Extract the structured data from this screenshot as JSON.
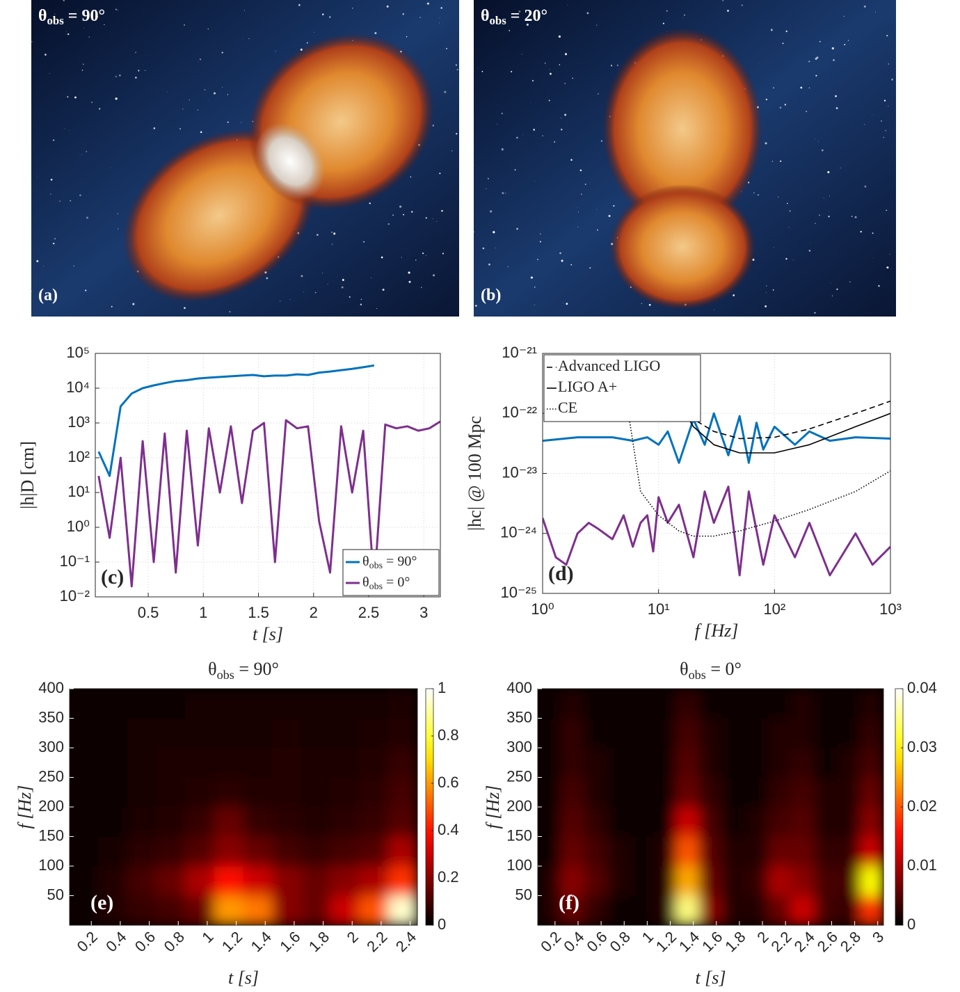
{
  "images": [
    {
      "title": "θobs = 90°",
      "label": "(a)"
    },
    {
      "title": "θobs = 20°",
      "label": "(b)"
    }
  ],
  "chart_data": [
    {
      "type": "line",
      "panel_label": "(c)",
      "xlabel": "t [s]",
      "ylabel": "|h|D [cm]",
      "yscale": "log",
      "grid": true,
      "legend": "lower right",
      "xlim": [
        0.02,
        3.15
      ],
      "xticks": [
        0.5,
        1,
        1.5,
        2,
        2.5,
        3
      ],
      "ylim": [
        0.01,
        100000
      ],
      "yticks": [
        {
          "value": 0.01,
          "label": "10⁻²"
        },
        {
          "value": 0.1,
          "label": "10⁻¹"
        },
        {
          "value": 1,
          "label": "10⁰"
        },
        {
          "value": 10,
          "label": "10¹"
        },
        {
          "value": 100,
          "label": "10²"
        },
        {
          "value": 1000,
          "label": "10³"
        },
        {
          "value": 10000,
          "label": "10⁴"
        },
        {
          "value": 100000,
          "label": "10⁵"
        }
      ],
      "x": [
        0.05,
        0.15,
        0.25,
        0.35,
        0.45,
        0.55,
        0.65,
        0.75,
        0.85,
        0.95,
        1.05,
        1.15,
        1.25,
        1.35,
        1.45,
        1.55,
        1.65,
        1.75,
        1.85,
        1.95,
        2.05,
        2.15,
        2.25,
        2.35,
        2.45,
        2.55,
        2.65,
        2.75,
        2.85,
        2.95,
        3.05,
        3.15
      ],
      "series": [
        {
          "name": "θobs = 90°",
          "color": "#0072bd",
          "values": [
            150,
            30,
            3000,
            7000,
            10000,
            12000,
            14000,
            16000,
            17000,
            19000,
            20000,
            21000,
            22000,
            23000,
            24000,
            22000,
            23000,
            23000,
            25000,
            24000,
            28000,
            30000,
            33000,
            36000,
            40000,
            45000,
            null,
            null,
            null,
            null,
            null,
            null
          ]
        },
        {
          "name": "θobs = 0°",
          "color": "#7e2f8e",
          "values": [
            30,
            0.5,
            100,
            0.02,
            300,
            0.1,
            500,
            0.05,
            600,
            0.3,
            700,
            10,
            800,
            5,
            600,
            1000,
            0.1,
            1200,
            700,
            800,
            1.5,
            0.05,
            800,
            10,
            600,
            0.02,
            900,
            700,
            800,
            600,
            700,
            1100
          ]
        }
      ]
    },
    {
      "type": "line",
      "panel_label": "(d)",
      "xlabel": "f [Hz]",
      "ylabel": "|hc| @ 100 Mpc",
      "xscale": "log",
      "yscale": "log",
      "grid": true,
      "legend": "upper left",
      "xlim": [
        1,
        1000
      ],
      "xticks": [
        {
          "value": 1,
          "label": "10⁰"
        },
        {
          "value": 10,
          "label": "10¹"
        },
        {
          "value": 100,
          "label": "10²"
        },
        {
          "value": 1000,
          "label": "10³"
        }
      ],
      "ylim": [
        1e-25,
        1e-21
      ],
      "yticks": [
        {
          "value": 1e-25,
          "label": "10⁻²⁵"
        },
        {
          "value": 1e-24,
          "label": "10⁻²⁴"
        },
        {
          "value": 1e-23,
          "label": "10⁻²³"
        },
        {
          "value": 1e-22,
          "label": "10⁻²²"
        },
        {
          "value": 1e-21,
          "label": "10⁻²¹"
        }
      ],
      "series": [
        {
          "color": "#0072bd",
          "x": [
            1,
            2,
            4,
            6,
            8,
            10,
            12,
            15,
            20,
            25,
            30,
            40,
            50,
            60,
            70,
            80,
            100,
            150,
            200,
            300,
            500,
            1000
          ],
          "values": [
            3.5e-23,
            4e-23,
            4e-23,
            3.5e-23,
            4e-23,
            3e-23,
            5e-23,
            1.5e-23,
            8e-23,
            3e-23,
            1e-22,
            2e-23,
            9e-23,
            1.5e-23,
            7e-23,
            2.5e-23,
            6e-23,
            3e-23,
            5e-23,
            3.5e-23,
            4e-23,
            3.8e-23
          ]
        },
        {
          "color": "#7e2f8e",
          "x": [
            1,
            1.3,
            1.6,
            2,
            2.5,
            3,
            4,
            5,
            6,
            7,
            8,
            9,
            10,
            12,
            15,
            20,
            25,
            30,
            40,
            50,
            60,
            80,
            100,
            150,
            200,
            300,
            500,
            700,
            1000
          ],
          "values": [
            1.8e-24,
            4e-25,
            3e-25,
            1e-24,
            1.5e-24,
            1.2e-24,
            8e-25,
            2e-24,
            6e-25,
            1.5e-24,
            2e-24,
            5e-25,
            4e-24,
            1.5e-24,
            3e-24,
            4e-25,
            5e-24,
            1.5e-24,
            6e-24,
            2e-25,
            5e-24,
            3e-25,
            2e-24,
            4e-25,
            1.5e-24,
            2e-25,
            1e-24,
            3e-25,
            6e-25
          ]
        },
        {
          "name": "Advanced LIGO",
          "color": "#000000",
          "dash": "dashed",
          "x": [
            10,
            15,
            20,
            30,
            50,
            100,
            200,
            500,
            1000
          ],
          "values": [
            5e-22,
            1.5e-22,
            8e-23,
            5e-23,
            3.8e-23,
            4e-23,
            5.5e-23,
            1e-22,
            1.6e-22
          ]
        },
        {
          "name": "LIGO A+",
          "color": "#000000",
          "dash": "solid",
          "x": [
            15,
            20,
            30,
            50,
            100,
            200,
            500,
            1000
          ],
          "values": [
            1.5e-22,
            6e-23,
            3e-23,
            2.2e-23,
            2.2e-23,
            3e-23,
            6e-23,
            1e-22
          ]
        },
        {
          "name": "CE",
          "color": "#000000",
          "dash": "dotted",
          "x": [
            5.5,
            7,
            10,
            15,
            20,
            30,
            50,
            100,
            200,
            500,
            1000
          ],
          "values": [
            1e-22,
            5e-24,
            2e-24,
            1.1e-24,
            9e-25,
            9e-25,
            1.1e-24,
            1.6e-24,
            2.5e-24,
            5e-24,
            1.1e-23
          ]
        }
      ]
    },
    {
      "type": "heatmap",
      "title": "θobs = 90°",
      "panel_label": "(e)",
      "xlabel": "t [s]",
      "ylabel": "f [Hz]",
      "colormap": "hot",
      "xlim": [
        0.05,
        2.45
      ],
      "xticks": [
        0.2,
        0.4,
        0.6,
        0.8,
        1,
        1.2,
        1.4,
        1.6,
        1.8,
        2,
        2.2,
        2.4
      ],
      "ylim": [
        0,
        400
      ],
      "yticks": [
        50,
        100,
        150,
        200,
        250,
        300,
        350,
        400
      ],
      "zlim": [
        0,
        1
      ],
      "zticks": [
        0,
        0.2,
        0.4,
        0.6,
        0.8,
        1
      ],
      "x": [
        0.15,
        0.35,
        0.55,
        0.75,
        0.95,
        1.15,
        1.35,
        1.55,
        1.75,
        1.95,
        2.15,
        2.35
      ],
      "y": [
        25,
        75,
        125,
        175,
        225,
        275,
        325,
        375
      ],
      "z": [
        [
          0.02,
          0.05,
          0.08,
          0.1,
          0.15,
          0.6,
          0.55,
          0.2,
          0.15,
          0.3,
          0.5,
          0.95
        ],
        [
          0.02,
          0.05,
          0.1,
          0.15,
          0.25,
          0.4,
          0.3,
          0.2,
          0.15,
          0.2,
          0.25,
          0.45
        ],
        [
          0.01,
          0.03,
          0.06,
          0.08,
          0.12,
          0.2,
          0.15,
          0.1,
          0.08,
          0.1,
          0.12,
          0.25
        ],
        [
          0.01,
          0.02,
          0.04,
          0.05,
          0.08,
          0.15,
          0.08,
          0.06,
          0.05,
          0.06,
          0.08,
          0.12
        ],
        [
          0.01,
          0.02,
          0.03,
          0.04,
          0.05,
          0.06,
          0.05,
          0.05,
          0.04,
          0.05,
          0.06,
          0.1
        ],
        [
          0.01,
          0.02,
          0.03,
          0.04,
          0.04,
          0.04,
          0.04,
          0.05,
          0.04,
          0.04,
          0.05,
          0.08
        ],
        [
          0.01,
          0.02,
          0.03,
          0.03,
          0.03,
          0.03,
          0.03,
          0.04,
          0.03,
          0.03,
          0.04,
          0.05
        ],
        [
          0.01,
          0.02,
          0.02,
          0.02,
          0.03,
          0.03,
          0.03,
          0.03,
          0.03,
          0.03,
          0.03,
          0.04
        ]
      ]
    },
    {
      "type": "heatmap",
      "title": "θobs = 0°",
      "panel_label": "(f)",
      "xlabel": "t [s]",
      "ylabel": "f [Hz]",
      "colormap": "hot",
      "xlim": [
        0.05,
        3.05
      ],
      "xticks": [
        0.2,
        0.4,
        0.6,
        0.8,
        1,
        1.2,
        1.4,
        1.6,
        1.8,
        2,
        2.2,
        2.4,
        2.6,
        2.8,
        3
      ],
      "ylim": [
        0,
        400
      ],
      "yticks": [
        50,
        100,
        150,
        200,
        250,
        300,
        350,
        400
      ],
      "zlim": [
        0,
        0.04
      ],
      "zticks": [
        0,
        0.01,
        0.02,
        0.03,
        0.04
      ],
      "x": [
        0.15,
        0.35,
        0.55,
        0.75,
        0.95,
        1.15,
        1.35,
        1.55,
        1.75,
        1.95,
        2.15,
        2.35,
        2.55,
        2.75,
        2.95
      ],
      "y": [
        25,
        75,
        125,
        175,
        225,
        275,
        325,
        375
      ],
      "z": [
        [
          0.002,
          0.006,
          0.003,
          0.001,
          0.001,
          0.002,
          0.035,
          0.008,
          0.002,
          0.002,
          0.006,
          0.012,
          0.004,
          0.003,
          0.018
        ],
        [
          0.002,
          0.008,
          0.005,
          0.002,
          0.001,
          0.002,
          0.025,
          0.006,
          0.002,
          0.003,
          0.01,
          0.008,
          0.004,
          0.004,
          0.03
        ],
        [
          0.001,
          0.006,
          0.004,
          0.002,
          0.001,
          0.002,
          0.02,
          0.005,
          0.002,
          0.002,
          0.006,
          0.006,
          0.003,
          0.003,
          0.012
        ],
        [
          0.001,
          0.005,
          0.003,
          0.001,
          0.001,
          0.001,
          0.012,
          0.004,
          0.001,
          0.002,
          0.004,
          0.005,
          0.002,
          0.002,
          0.008
        ],
        [
          0.001,
          0.004,
          0.002,
          0.001,
          0.001,
          0.001,
          0.006,
          0.003,
          0.001,
          0.001,
          0.003,
          0.004,
          0.002,
          0.002,
          0.006
        ],
        [
          0.001,
          0.003,
          0.002,
          0.001,
          0.001,
          0.001,
          0.005,
          0.002,
          0.001,
          0.001,
          0.002,
          0.003,
          0.001,
          0.002,
          0.004
        ],
        [
          0.001,
          0.003,
          0.001,
          0.001,
          0.001,
          0.001,
          0.004,
          0.002,
          0.001,
          0.001,
          0.002,
          0.002,
          0.001,
          0.001,
          0.003
        ],
        [
          0.001,
          0.002,
          0.001,
          0.001,
          0.001,
          0.001,
          0.003,
          0.001,
          0.001,
          0.001,
          0.001,
          0.002,
          0.001,
          0.001,
          0.002
        ]
      ]
    }
  ]
}
